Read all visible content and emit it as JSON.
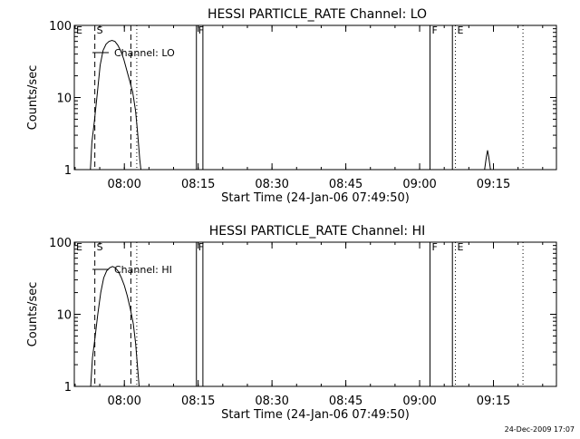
{
  "chart_data": [
    {
      "type": "line",
      "title": "HESSI PARTICLE_RATE Channel: LO",
      "xlabel": "Start Time (24-Jan-06 07:49:50)",
      "ylabel": "Counts/sec",
      "yscale": "log",
      "ylim": [
        1,
        100
      ],
      "y_tick_labels": [
        "1",
        "10",
        "100"
      ],
      "x_tick_labels": [
        "08:00",
        "08:15",
        "08:30",
        "08:45",
        "09:00",
        "09:15"
      ],
      "x_ticks_hours": [
        8.0,
        8.25,
        8.5,
        8.75,
        9.0,
        9.25
      ],
      "xlim_hours": [
        7.8305,
        9.4633
      ],
      "legend": "Channel: LO",
      "grid": false,
      "series": [
        {
          "points": [
            [
              7.885,
              1.0
            ],
            [
              7.89,
              2.4
            ],
            [
              7.898,
              4.5
            ],
            [
              7.908,
              11
            ],
            [
              7.918,
              28
            ],
            [
              7.928,
              45
            ],
            [
              7.938,
              55
            ],
            [
              7.948,
              60
            ],
            [
              7.958,
              62
            ],
            [
              7.968,
              60
            ],
            [
              7.978,
              53
            ],
            [
              7.988,
              44
            ],
            [
              7.998,
              34
            ],
            [
              8.008,
              24
            ],
            [
              8.018,
              17
            ],
            [
              8.028,
              12
            ],
            [
              8.038,
              6.5
            ],
            [
              8.045,
              3.2
            ],
            [
              8.052,
              1.4
            ],
            [
              8.056,
              1.0
            ]
          ]
        },
        {
          "points": [
            [
              9.22,
              1.0
            ],
            [
              9.226,
              1.5
            ],
            [
              9.23,
              1.85
            ],
            [
              9.234,
              1.5
            ],
            [
              9.24,
              1.0
            ]
          ]
        }
      ],
      "markers": [
        {
          "x": 7.8305,
          "label": "E",
          "style": "solid"
        },
        {
          "x": 7.9,
          "label": "S",
          "style": "dashed"
        },
        {
          "x": 8.022,
          "label": "",
          "style": "dashed"
        },
        {
          "x": 8.042,
          "label": "",
          "style": "dotted"
        },
        {
          "x": 8.244,
          "label": "F",
          "style": "solid"
        },
        {
          "x": 8.266,
          "label": "",
          "style": "solid"
        },
        {
          "x": 9.035,
          "label": "F",
          "style": "solid"
        },
        {
          "x": 9.111,
          "label": "",
          "style": "solid"
        },
        {
          "x": 9.121,
          "label": "E",
          "style": "dotted"
        },
        {
          "x": 9.35,
          "label": "",
          "style": "dotted"
        }
      ]
    },
    {
      "type": "line",
      "title": "HESSI PARTICLE_RATE Channel: HI",
      "xlabel": "Start Time (24-Jan-06 07:49:50)",
      "ylabel": "Counts/sec",
      "yscale": "log",
      "ylim": [
        1,
        100
      ],
      "y_tick_labels": [
        "1",
        "10",
        "100"
      ],
      "x_tick_labels": [
        "08:00",
        "08:15",
        "08:30",
        "08:45",
        "09:00",
        "09:15"
      ],
      "x_ticks_hours": [
        8.0,
        8.25,
        8.5,
        8.75,
        9.0,
        9.25
      ],
      "xlim_hours": [
        7.8305,
        9.4633
      ],
      "legend": "Channel: HI",
      "grid": false,
      "series": [
        {
          "points": [
            [
              7.886,
              1.0
            ],
            [
              7.892,
              2.5
            ],
            [
              7.9,
              4.5
            ],
            [
              7.91,
              10
            ],
            [
              7.92,
              20
            ],
            [
              7.93,
              32
            ],
            [
              7.94,
              40
            ],
            [
              7.95,
              44
            ],
            [
              7.96,
              46
            ],
            [
              7.97,
              44
            ],
            [
              7.98,
              39
            ],
            [
              7.99,
              32
            ],
            [
              8.0,
              25
            ],
            [
              8.01,
              18
            ],
            [
              8.02,
              12
            ],
            [
              8.03,
              7.5
            ],
            [
              8.038,
              4.0
            ],
            [
              8.044,
              2.0
            ],
            [
              8.05,
              1.0
            ]
          ]
        }
      ],
      "markers": [
        {
          "x": 7.8305,
          "label": "E",
          "style": "solid"
        },
        {
          "x": 7.9,
          "label": "S",
          "style": "dashed"
        },
        {
          "x": 8.022,
          "label": "",
          "style": "dashed"
        },
        {
          "x": 8.042,
          "label": "",
          "style": "dotted"
        },
        {
          "x": 8.244,
          "label": "F",
          "style": "solid"
        },
        {
          "x": 8.266,
          "label": "",
          "style": "solid"
        },
        {
          "x": 9.035,
          "label": "F",
          "style": "solid"
        },
        {
          "x": 9.111,
          "label": "",
          "style": "solid"
        },
        {
          "x": 9.121,
          "label": "E",
          "style": "dotted"
        },
        {
          "x": 9.35,
          "label": "",
          "style": "dotted"
        }
      ]
    }
  ],
  "footer": {
    "timestamp": "24-Dec-2009 17:07"
  },
  "colors": {
    "background": "#ffffff",
    "foreground": "#000000"
  }
}
